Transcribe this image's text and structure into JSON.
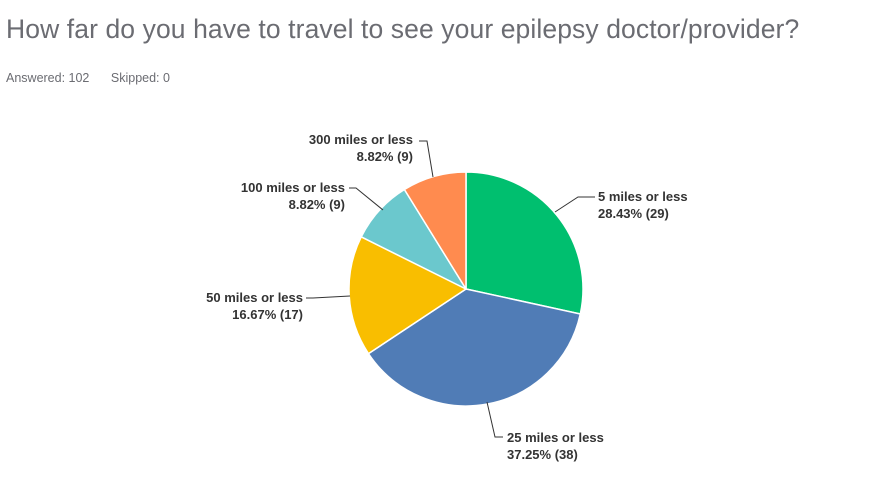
{
  "question": {
    "title": "How far do you have to travel to see your epilepsy doctor/provider?"
  },
  "stats": {
    "answered": "Answered: 102",
    "skipped": "Skipped: 0"
  },
  "chart_data": {
    "type": "pie",
    "total": 102,
    "start_angle_deg": 0,
    "direction": "clockwise",
    "slices": [
      {
        "label": "5 miles or less",
        "percent": 28.43,
        "count": 29,
        "percent_text": "28.43% (29)",
        "color": "#00bf6f"
      },
      {
        "label": "25 miles or less",
        "percent": 37.25,
        "count": 38,
        "percent_text": "37.25% (38)",
        "color": "#507cb6"
      },
      {
        "label": "50 miles or less",
        "percent": 16.67,
        "count": 17,
        "percent_text": "16.67% (17)",
        "color": "#f9be00"
      },
      {
        "label": "100 miles or less",
        "percent": 8.82,
        "count": 9,
        "percent_text": "8.82% (9)",
        "color": "#6bc8cd"
      },
      {
        "label": "300 miles or less",
        "percent": 8.82,
        "count": 9,
        "percent_text": "8.82% (9)",
        "color": "#ff8b4f"
      }
    ]
  }
}
